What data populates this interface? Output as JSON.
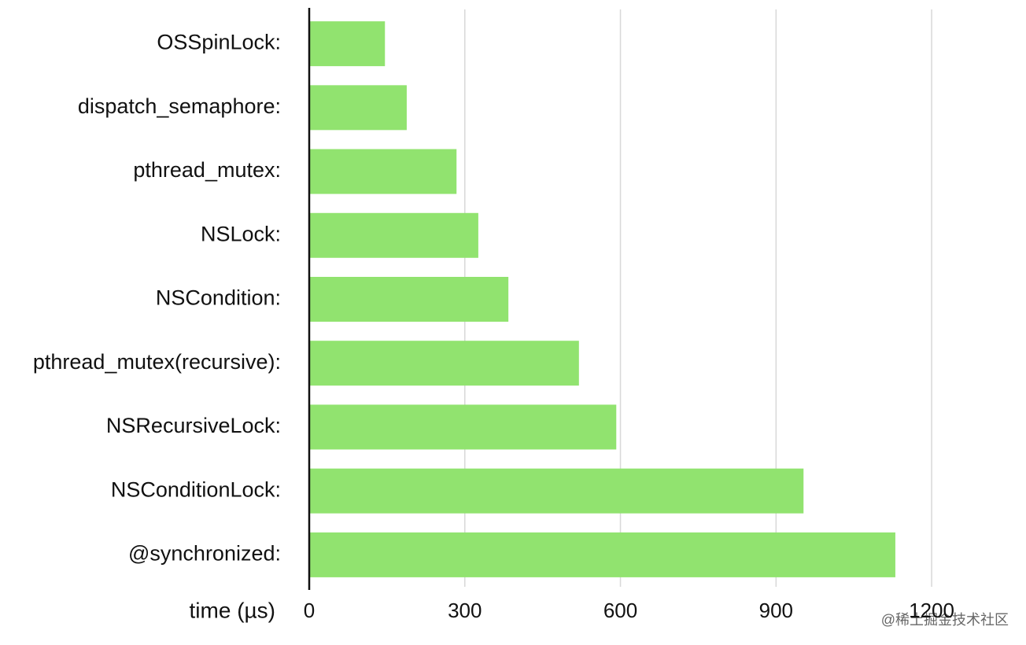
{
  "chart_data": {
    "type": "bar",
    "orientation": "horizontal",
    "categories": [
      "OSSpinLock:",
      "dispatch_semaphore:",
      "pthread_mutex:",
      "NSLock:",
      "NSCondition:",
      "pthread_mutex(recursive):",
      "NSRecursiveLock:",
      "NSConditionLock:",
      "@synchronized:"
    ],
    "values": [
      146,
      188,
      284,
      326,
      384,
      520,
      592,
      953,
      1130
    ],
    "color": "#91e36f",
    "xlabel": "time (µs)",
    "xlim": [
      0,
      1300
    ],
    "xticks": [
      0,
      300,
      600,
      900,
      1200
    ],
    "grid": true,
    "watermark": "@稀土掘金技术社区"
  }
}
